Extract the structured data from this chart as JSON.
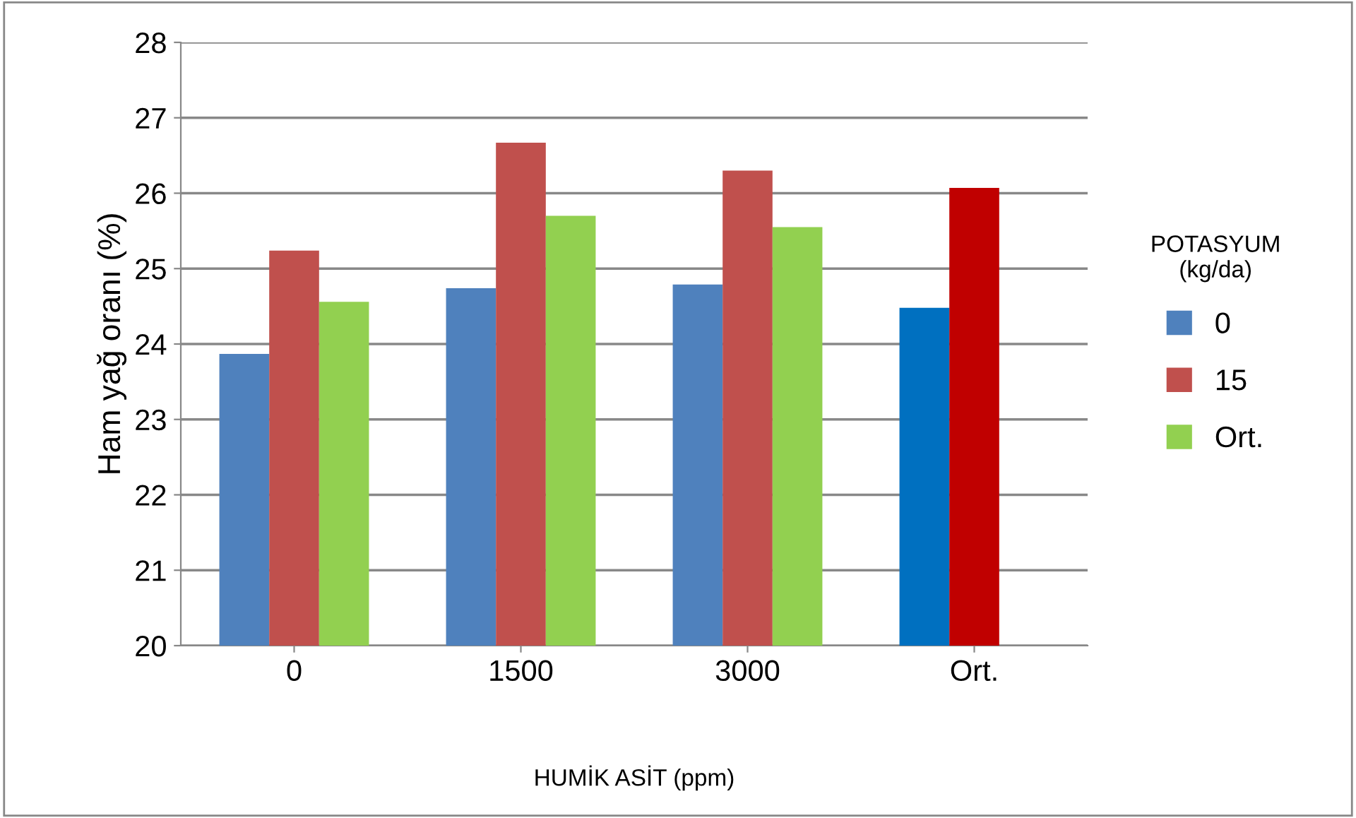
{
  "chart_data": {
    "type": "bar",
    "xlabel": "HUMİK ASİT (ppm)",
    "ylabel": "Ham yağ oranı (%)",
    "legend_title": "POTASYUM\n(kg/da)",
    "categories": [
      "0",
      "1500",
      "3000",
      "Ort."
    ],
    "series": [
      {
        "name": "0",
        "color": "#4f81bd",
        "colors": [
          "#4f81bd",
          "#4f81bd",
          "#4f81bd",
          "#0070c0"
        ],
        "values": [
          23.87,
          24.74,
          24.79,
          24.48
        ]
      },
      {
        "name": "15",
        "color": "#c0504d",
        "colors": [
          "#c0504d",
          "#c0504d",
          "#c0504d",
          "#c00000"
        ],
        "values": [
          25.24,
          26.67,
          26.3,
          26.07
        ]
      },
      {
        "name": "Ort.",
        "color": "#92d050",
        "values": [
          24.56,
          25.7,
          25.55,
          null
        ]
      }
    ],
    "ylim": [
      20,
      28
    ],
    "yticks": [
      20,
      21,
      22,
      23,
      24,
      25,
      26,
      27,
      28
    ],
    "grid": "y",
    "legend": "right"
  }
}
